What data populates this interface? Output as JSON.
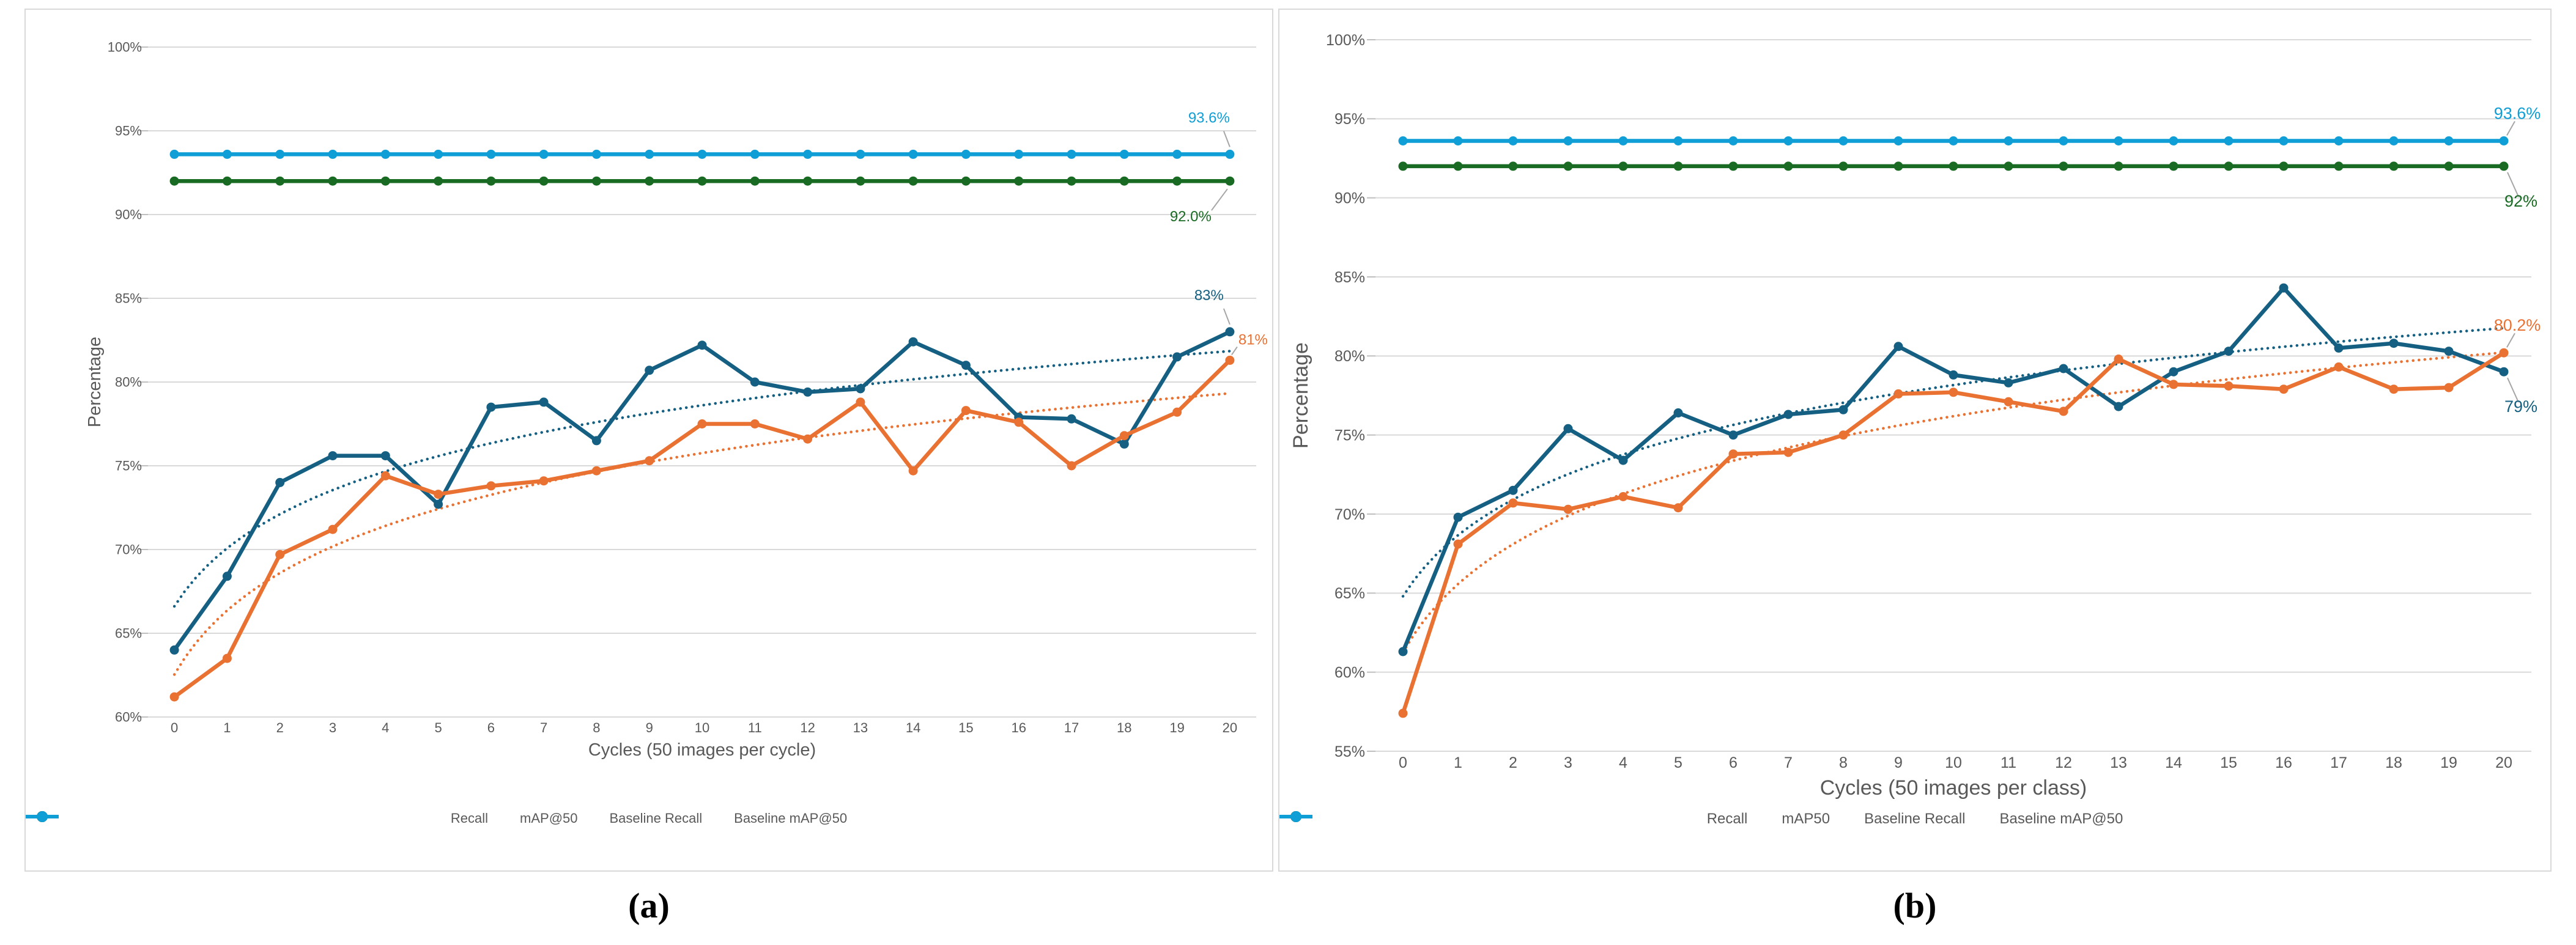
{
  "figure": {
    "caption_a": "(a)",
    "caption_b": "(b)"
  },
  "colors": {
    "recall": "#156082",
    "map50": "#E97132",
    "baseline_recall": "#196B24",
    "baseline_map50": "#0F9ED5",
    "gridline": "#D9D9D9",
    "tick_mark": "#BFBFBF",
    "axis_text": "#595959",
    "leader_line": "#A6A6A6",
    "panel_border": "#D9D9D9",
    "caption_text": "#000000"
  },
  "chart_data": [
    {
      "id": "a",
      "type": "line",
      "title": "",
      "xlabel": "Cycles (50 images per cycle)",
      "ylabel": "Percentage",
      "ylim": [
        60,
        100
      ],
      "grid": true,
      "legend_position": "bottom",
      "yticks": [
        "100%",
        "95%",
        "90%",
        "85%",
        "80%",
        "75%",
        "70%",
        "65%",
        "60%"
      ],
      "xticks": [
        "0",
        "1",
        "2",
        "3",
        "4",
        "5",
        "6",
        "7",
        "8",
        "9",
        "10",
        "11",
        "12",
        "13",
        "14",
        "15",
        "16",
        "17",
        "18",
        "19",
        "20"
      ],
      "x": [
        0,
        1,
        2,
        3,
        4,
        5,
        6,
        7,
        8,
        9,
        10,
        11,
        12,
        13,
        14,
        15,
        16,
        17,
        18,
        19,
        20
      ],
      "series": [
        {
          "key": "recall",
          "name": "Recall",
          "color": "#156082",
          "marker": "circle",
          "line": "solid",
          "values": [
            64.0,
            68.4,
            74.0,
            75.6,
            75.6,
            72.7,
            78.5,
            78.8,
            76.5,
            80.7,
            82.2,
            80.0,
            79.4,
            79.6,
            82.4,
            81.0,
            77.9,
            77.8,
            76.3,
            81.5,
            83.0
          ],
          "end_label": "83%",
          "label_pos": "above-left"
        },
        {
          "key": "map50",
          "name": "mAP@50",
          "color": "#E97132",
          "marker": "circle",
          "line": "solid",
          "values": [
            61.2,
            63.5,
            69.7,
            71.2,
            74.4,
            73.3,
            73.8,
            74.1,
            74.7,
            75.3,
            77.5,
            77.5,
            76.6,
            78.8,
            74.7,
            78.3,
            77.6,
            75.0,
            76.8,
            78.2,
            81.3
          ],
          "end_label": "81%",
          "label_pos": "right-above"
        },
        {
          "key": "baseline_recall",
          "name": "Baseline Recall",
          "color": "#196B24",
          "marker": "circle",
          "line": "solid",
          "constant": 92.0,
          "count": 21,
          "end_label": "92.0%",
          "label_pos": "below-left"
        },
        {
          "key": "baseline_map50",
          "name": "Baseline mAP@50",
          "color": "#0F9ED5",
          "marker": "circle",
          "line": "solid",
          "constant": 93.6,
          "count": 21,
          "end_label": "93.6%",
          "label_pos": "above-left"
        }
      ],
      "trendlines": [
        {
          "of": "recall",
          "fit": "log",
          "style": "dotted",
          "color": "#156082"
        },
        {
          "of": "map50",
          "fit": "log",
          "style": "dotted",
          "color": "#E97132"
        }
      ]
    },
    {
      "id": "b",
      "type": "line",
      "title": "",
      "xlabel": "Cycles (50 images per class)",
      "ylabel": "Percentage",
      "ylim": [
        55,
        100
      ],
      "grid": true,
      "legend_position": "bottom",
      "yticks": [
        "100%",
        "95%",
        "90%",
        "85%",
        "80%",
        "75%",
        "70%",
        "65%",
        "60%",
        "55%"
      ],
      "xticks": [
        "0",
        "1",
        "2",
        "3",
        "4",
        "5",
        "6",
        "7",
        "8",
        "9",
        "10",
        "11",
        "12",
        "13",
        "14",
        "15",
        "16",
        "17",
        "18",
        "19",
        "20"
      ],
      "x": [
        0,
        1,
        2,
        3,
        4,
        5,
        6,
        7,
        8,
        9,
        10,
        11,
        12,
        13,
        14,
        15,
        16,
        17,
        18,
        19,
        20
      ],
      "series": [
        {
          "key": "recall",
          "name": "Recall",
          "color": "#156082",
          "marker": "circle",
          "line": "solid",
          "values": [
            61.3,
            69.8,
            71.5,
            75.4,
            73.4,
            76.4,
            75.0,
            76.3,
            76.6,
            80.6,
            78.8,
            78.3,
            79.2,
            76.8,
            79.0,
            80.3,
            84.3,
            80.5,
            80.8,
            80.3,
            79.0
          ],
          "end_label": "79%",
          "label_pos": "out-down"
        },
        {
          "key": "map50",
          "name": "mAP50",
          "color": "#E97132",
          "marker": "circle",
          "line": "solid",
          "values": [
            57.4,
            68.1,
            70.7,
            70.3,
            71.1,
            70.4,
            73.8,
            73.9,
            75.0,
            77.6,
            77.7,
            77.1,
            76.5,
            79.8,
            78.2,
            78.1,
            77.9,
            79.3,
            77.9,
            78.0,
            80.2
          ],
          "end_label": "80.2%",
          "label_pos": "out-up"
        },
        {
          "key": "baseline_recall",
          "name": "Baseline Recall",
          "color": "#196B24",
          "marker": "circle",
          "line": "solid",
          "constant": 92.0,
          "count": 21,
          "end_label": "92%",
          "label_pos": "out-down"
        },
        {
          "key": "baseline_map50",
          "name": "Baseline mAP@50",
          "color": "#0F9ED5",
          "marker": "circle",
          "line": "solid",
          "constant": 93.6,
          "count": 21,
          "end_label": "93.6%",
          "label_pos": "out-up"
        }
      ],
      "trendlines": [
        {
          "of": "recall",
          "fit": "log",
          "style": "dotted",
          "color": "#156082"
        },
        {
          "of": "map50",
          "fit": "log",
          "style": "dotted",
          "color": "#E97132"
        }
      ]
    }
  ]
}
